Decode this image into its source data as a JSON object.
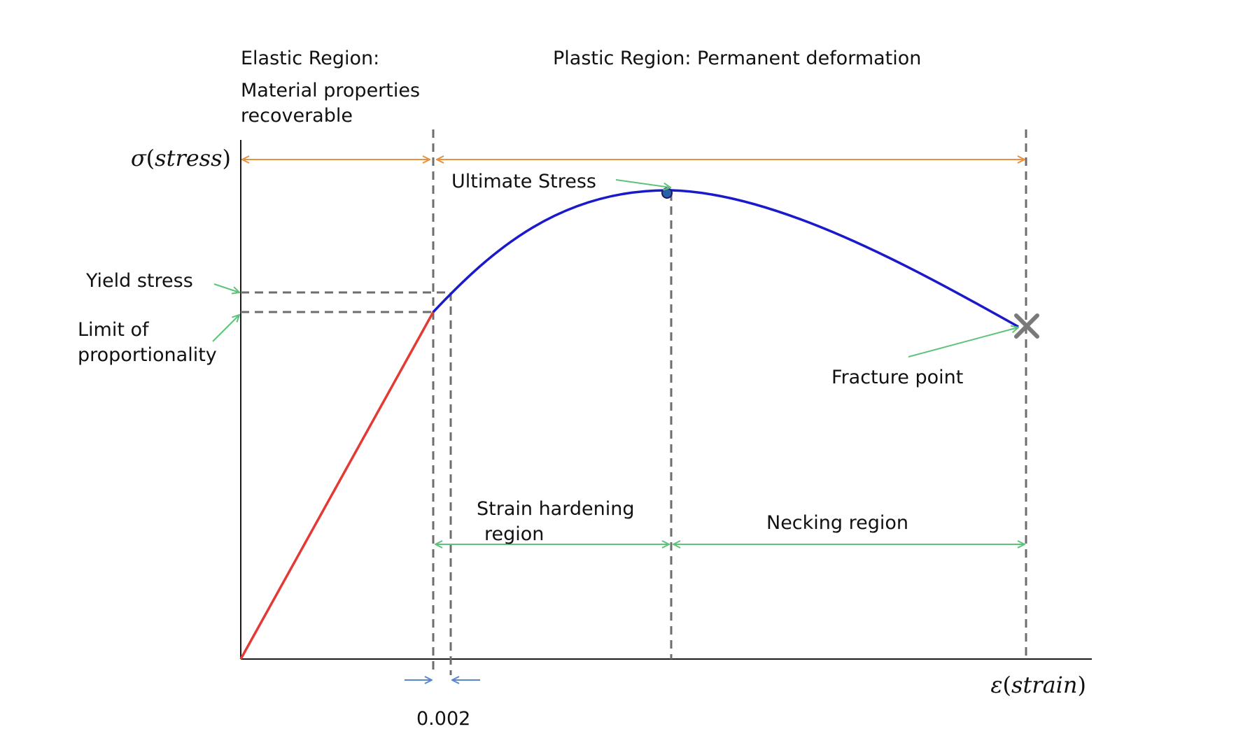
{
  "labels": {
    "elastic_title": "Elastic Region:",
    "elastic_line1": "Material properties",
    "elastic_line2": "recoverable",
    "plastic_title": "Plastic Region: Permanent deformation",
    "y_axis_symbol": "σ",
    "y_axis_word": "stress",
    "x_axis_symbol": "ε",
    "x_axis_word": "strain",
    "ultimate_stress": "Ultimate Stress",
    "yield_stress": "Yield stress",
    "limit_line1": "Limit of",
    "limit_line2": "proportionality",
    "fracture_point": "Fracture point",
    "strain_hardening_line1": "Strain hardening",
    "strain_hardening_line2": "region",
    "necking_region": "Necking region",
    "offset_value": "0.002"
  },
  "colors": {
    "elastic_curve": "#e53935",
    "plastic_curve": "#1a1acc",
    "region_arrows": "#e8913f",
    "annotation_arrows": "#5fc27a",
    "offset_arrows": "#5a86c9",
    "guide_lines": "#6e6e6e",
    "fracture_marker": "#7a7a7a"
  },
  "icons": {
    "fracture_marker": "x-cross-icon",
    "ultimate_marker": "dot-icon"
  }
}
